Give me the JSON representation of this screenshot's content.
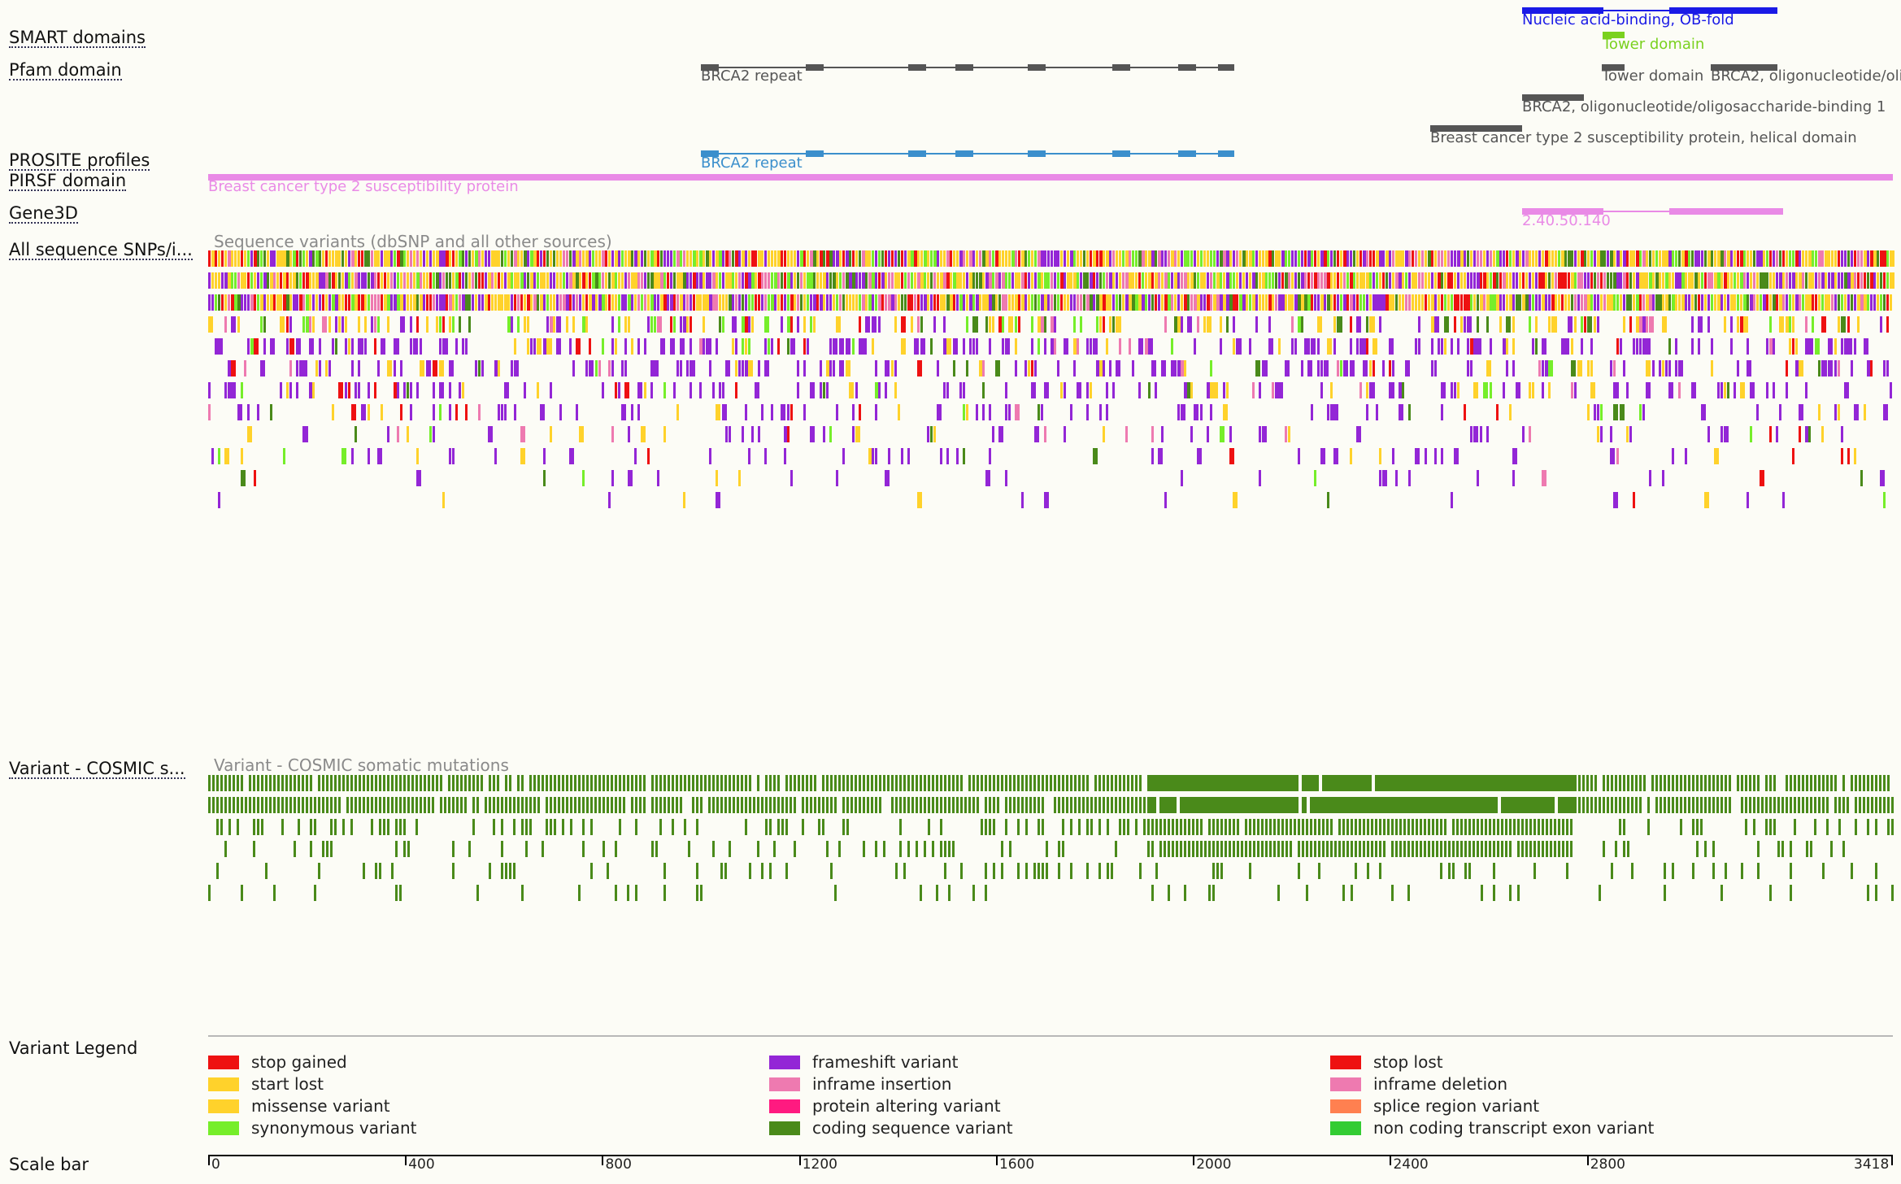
{
  "protein_length": 3418,
  "tracks": {
    "smart": "SMART domains",
    "pfam": "Pfam domain",
    "prosite": "PROSITE profiles",
    "pirsf": "PIRSF domain",
    "gene3d": "Gene3D",
    "snps": "All sequence SNPs/i...",
    "cosmic": "Variant - COSMIC s...",
    "legend": "Variant Legend",
    "scalebar": "Scale bar"
  },
  "features": {
    "smart_ob": "Nucleic acid-binding, OB-fold",
    "smart_tower": "Tower domain",
    "pfam_brca2_repeat": "BRCA2 repeat",
    "pfam_tower": "Tower domain",
    "pfam_ob_cut": "BRCA2, oligonucleotide/oli",
    "pfam_ob1": "BRCA2, oligonucleotide/oligosaccharide-binding 1",
    "pfam_helical": "Breast cancer type 2 susceptibility protein, helical domain",
    "prosite_repeat": "BRCA2 repeat",
    "pirsf": "Breast cancer type 2 susceptibility protein",
    "gene3d": "2.40.50.140"
  },
  "track_captions": {
    "snps": "Sequence variants (dbSNP and all other sources)",
    "cosmic": "Variant - COSMIC somatic mutations"
  },
  "colors": {
    "smart": "#1a1ae6",
    "tower": "#7ad11f",
    "pfam": "#555555",
    "prosite": "#3b8fcc",
    "pirsf": "#e98ae6",
    "gene3d": "#e98ae6",
    "cosmic": "#4a8a1a"
  },
  "legend": [
    {
      "label": "stop gained",
      "color": "#ee1111"
    },
    {
      "label": "start lost",
      "color": "#ffd22b"
    },
    {
      "label": "missense variant",
      "color": "#ffd22b"
    },
    {
      "label": "synonymous variant",
      "color": "#76ee2a"
    },
    {
      "label": "frameshift variant",
      "color": "#9326d6"
    },
    {
      "label": "inframe insertion",
      "color": "#ee7ab0"
    },
    {
      "label": "protein altering variant",
      "color": "#ff1a80"
    },
    {
      "label": "coding sequence variant",
      "color": "#4a8a1a"
    },
    {
      "label": "stop lost",
      "color": "#ee1111"
    },
    {
      "label": "inframe deletion",
      "color": "#ee7ab0"
    },
    {
      "label": "splice region variant",
      "color": "#ff8050"
    },
    {
      "label": "non coding transcript exon variant",
      "color": "#33cc33"
    }
  ],
  "scale_ticks": [
    "0",
    "400",
    "800",
    "1200",
    "1600",
    "2000",
    "2400",
    "2800",
    "3418"
  ]
}
